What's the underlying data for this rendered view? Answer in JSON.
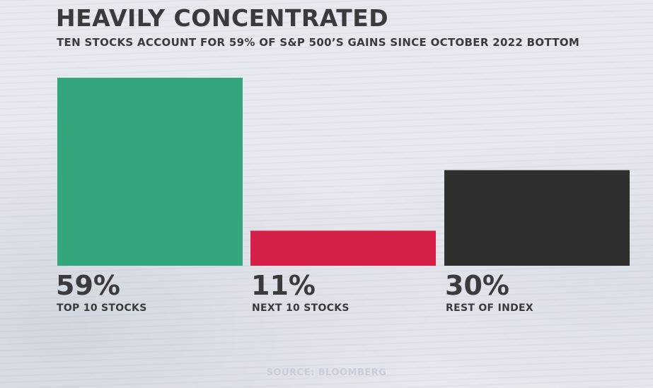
{
  "chart_data": {
    "type": "bar",
    "title": "HEAVILY CONCENTRATED",
    "subtitle": "TEN STOCKS ACCOUNT FOR 59% OF S&P 500’S GAINS SINCE OCTOBER 2022 BOTTOM",
    "categories": [
      "TOP 10 STOCKS",
      "NEXT 10 STOCKS",
      "REST OF INDEX"
    ],
    "values": [
      59,
      11,
      30
    ],
    "value_labels": [
      "59%",
      "11%",
      "30%"
    ],
    "colors": [
      "#33a67c",
      "#d42046",
      "#2f302e"
    ],
    "ylim": [
      0,
      59
    ],
    "source": "SOURCE: BLOOMBERG"
  }
}
